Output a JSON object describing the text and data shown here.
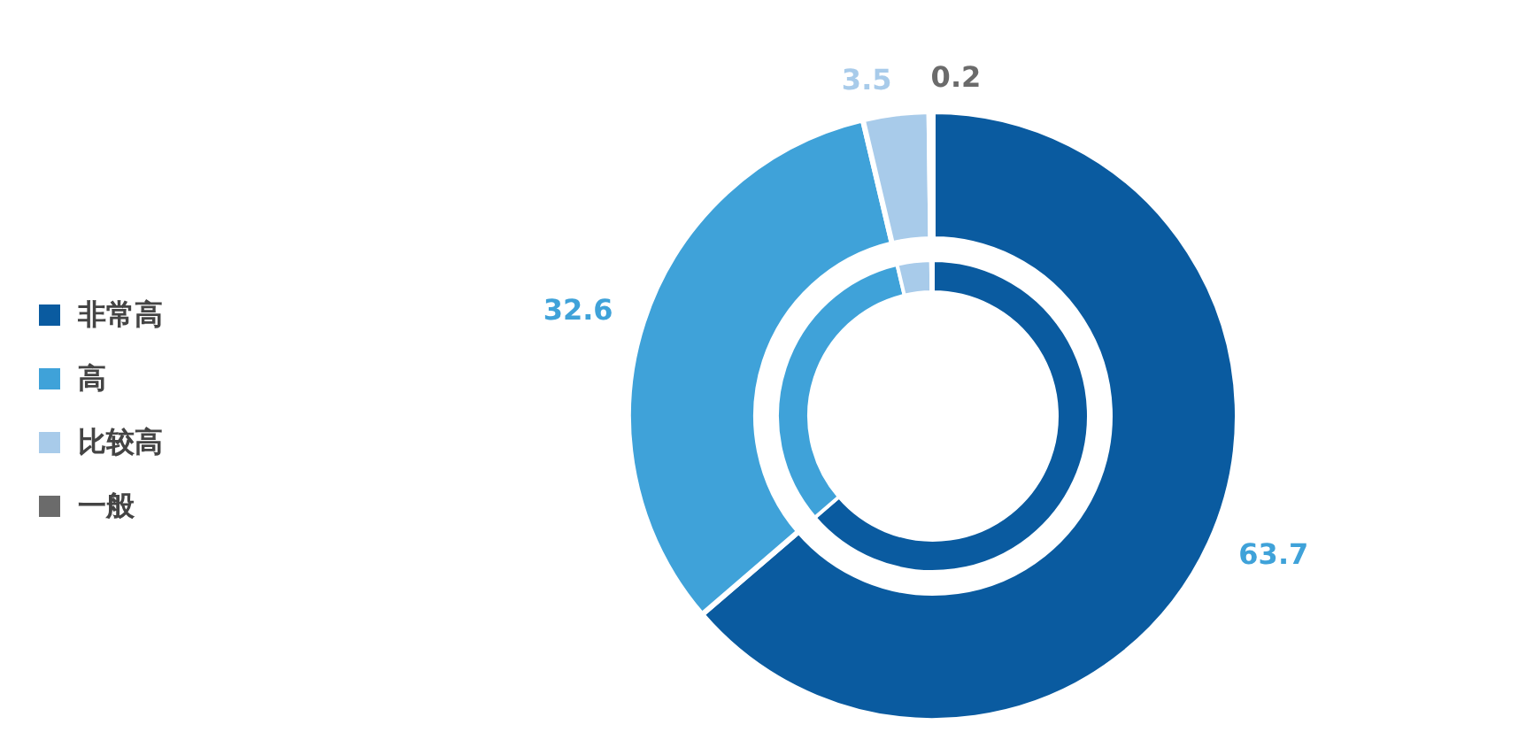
{
  "chart_data": {
    "type": "donut",
    "categories": [
      "非常高",
      "高",
      "比较高",
      "一般"
    ],
    "series": [
      {
        "values": [
          63.7,
          32.6,
          3.5,
          0.2
        ],
        "value_labels": [
          "63.7",
          "32.6",
          "3.5",
          "0.2"
        ]
      },
      {
        "values": [
          63.7,
          32.6,
          3.5,
          0.2
        ],
        "value_labels": [
          null,
          null,
          null,
          null
        ]
      }
    ],
    "colors": [
      "#0a5ba0",
      "#3fa2d9",
      "#a8cbea",
      "#6b6b6b"
    ],
    "legend": "left"
  }
}
